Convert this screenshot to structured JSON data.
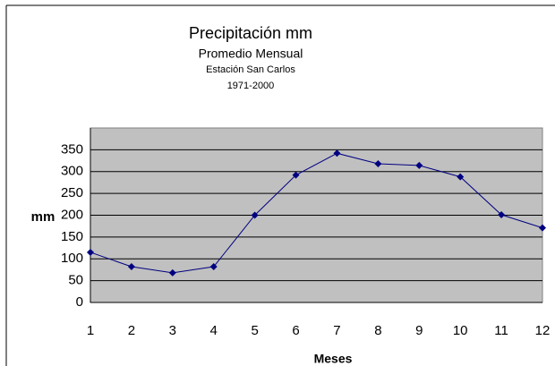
{
  "chart_data": {
    "type": "line",
    "title": "Precipitación mm",
    "subtitle": "Promedio Mensual",
    "station": "Estación San Carlos",
    "period": "1971-2000",
    "x_label": "Meses",
    "y_label": "mm",
    "x": [
      1,
      2,
      3,
      4,
      5,
      6,
      7,
      8,
      9,
      10,
      11,
      12
    ],
    "xlim": [
      1,
      12
    ],
    "xticks": [
      1,
      2,
      3,
      4,
      5,
      6,
      7,
      8,
      9,
      10,
      11,
      12
    ],
    "series": [
      {
        "color": "#000080",
        "values": [
          115,
          82,
          68,
          82,
          200,
          292,
          342,
          318,
          314,
          288,
          201,
          171
        ]
      }
    ],
    "ylim": [
      0,
      400
    ],
    "yticks": [
      0,
      50,
      100,
      150,
      200,
      250,
      300,
      350
    ],
    "grid": true,
    "plot_background": "#c0c0c0"
  }
}
